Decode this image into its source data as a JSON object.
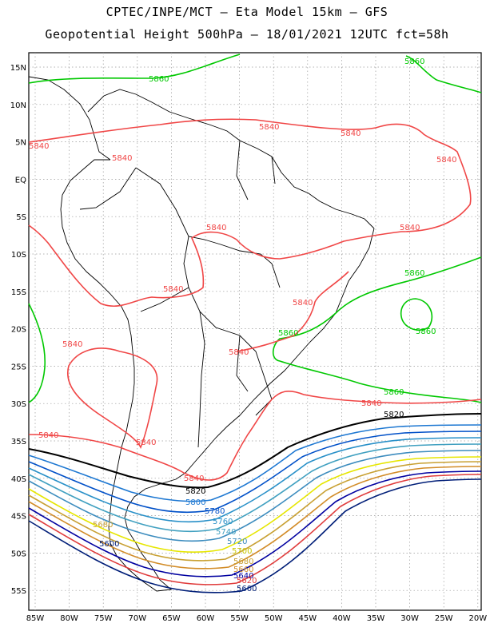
{
  "header": {
    "title": "CPTEC/INPE/MCT – Eta Model 15km – GFS",
    "subtitle": "Geopotential Height 500hPa – 18/01/2021 12UTC fct=58h"
  },
  "axes": {
    "lat_ticks": [
      "15N",
      "10N",
      "5N",
      "EQ",
      "5S",
      "10S",
      "15S",
      "20S",
      "25S",
      "30S",
      "35S",
      "40S",
      "45S",
      "50S",
      "55S"
    ],
    "lon_ticks": [
      "85W",
      "80W",
      "75W",
      "70W",
      "65W",
      "60W",
      "55W",
      "50W",
      "45W",
      "40W",
      "35W",
      "30W",
      "25W",
      "20W"
    ]
  },
  "contours": [
    {
      "value": "5860",
      "color": "#00c800"
    },
    {
      "value": "5840",
      "color": "#f04646"
    },
    {
      "value": "5820",
      "color": "#000000"
    },
    {
      "value": "5800",
      "color": "#1e78d2"
    },
    {
      "value": "5780",
      "color": "#0050c8"
    },
    {
      "value": "5760",
      "color": "#2890c8"
    },
    {
      "value": "5740",
      "color": "#40a0c0"
    },
    {
      "value": "5720",
      "color": "#3c8cbe"
    },
    {
      "value": "5700",
      "color": "#e6e600"
    },
    {
      "value": "5680",
      "color": "#c8a032"
    },
    {
      "value": "5660",
      "color": "#d28c28"
    },
    {
      "value": "5640",
      "color": "#0000a0"
    },
    {
      "value": "5620",
      "color": "#e03c3c"
    },
    {
      "value": "5600",
      "color": "#001e78"
    }
  ]
}
